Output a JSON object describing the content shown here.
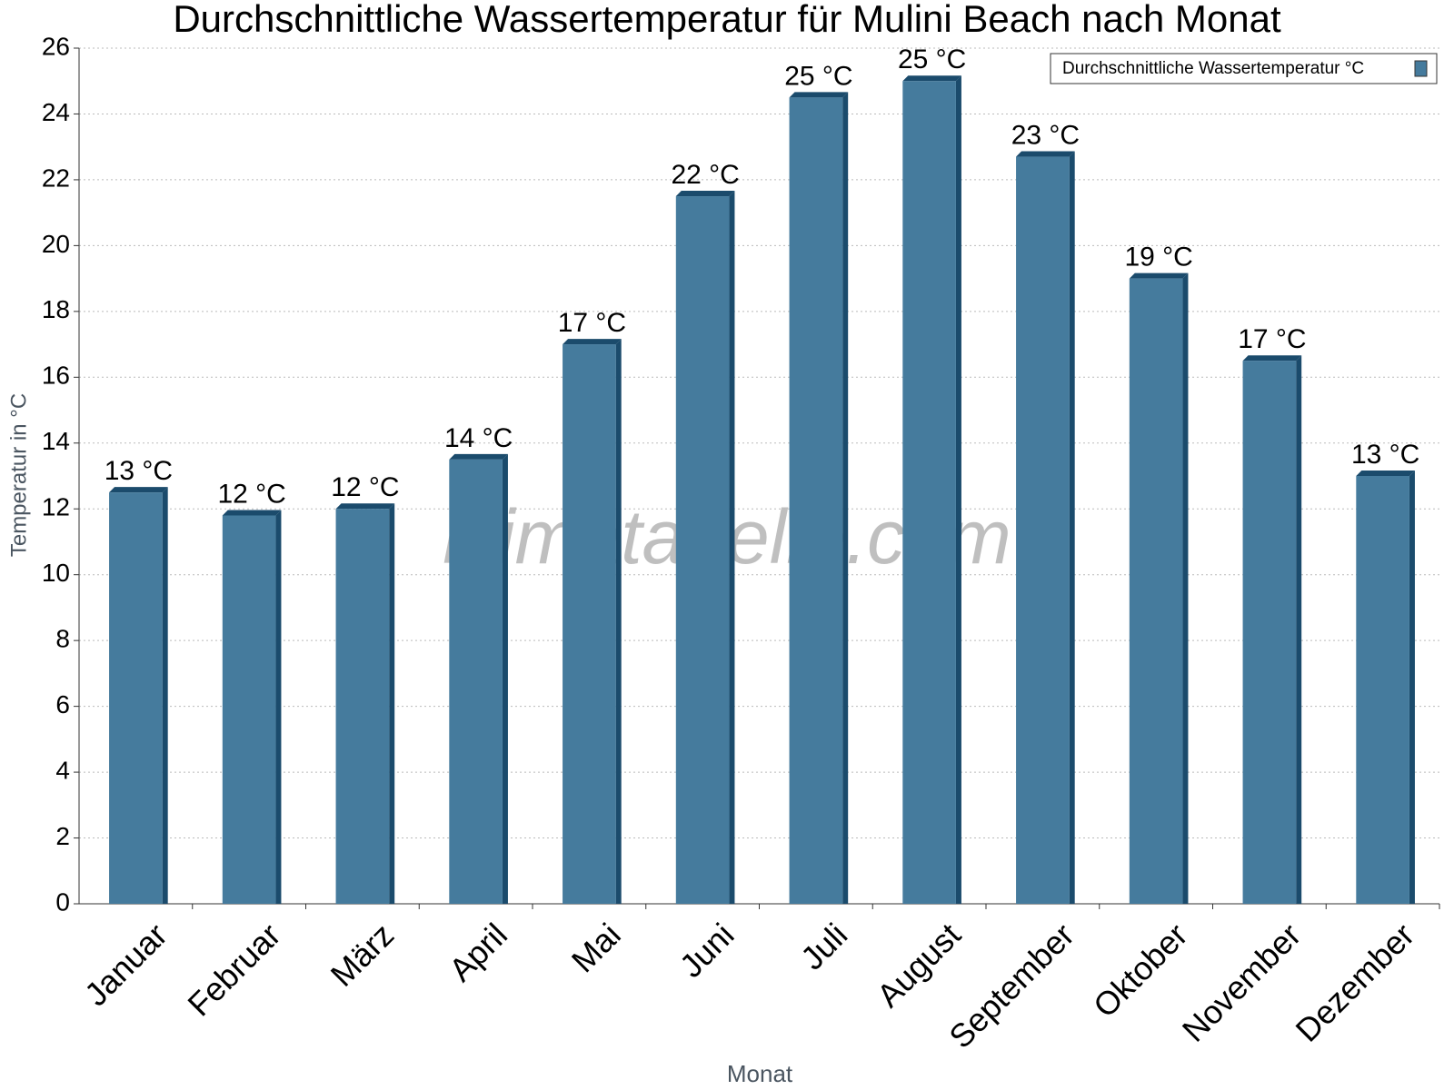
{
  "chart_data": {
    "type": "bar",
    "title": "Durchschnittliche Wassertemperatur für Mulini Beach nach Monat",
    "x_label": "Monat",
    "y_label": "Temperatur in °C",
    "watermark": "klimatabelle.com",
    "categories": [
      "Januar",
      "Februar",
      "März",
      "April",
      "Mai",
      "Juni",
      "Juli",
      "August",
      "September",
      "Oktober",
      "November",
      "Dezember"
    ],
    "series": [
      {
        "name": "Durchschnittliche Wassertemperatur °C",
        "color": "#457b9d",
        "values": [
          12.5,
          11.8,
          12.0,
          13.5,
          17.0,
          21.5,
          24.5,
          25.0,
          22.7,
          19.0,
          16.5,
          13.0
        ],
        "value_labels": [
          "13 °C",
          "12 °C",
          "12 °C",
          "14 °C",
          "17 °C",
          "22 °C",
          "25 °C",
          "25 °C",
          "23 °C",
          "19 °C",
          "17 °C",
          "13 °C"
        ]
      }
    ],
    "ylim": [
      0,
      26
    ],
    "yticks": [
      0,
      2,
      4,
      6,
      8,
      10,
      12,
      14,
      16,
      18,
      20,
      22,
      24,
      26
    ],
    "grid": true,
    "legend": "top-right"
  }
}
